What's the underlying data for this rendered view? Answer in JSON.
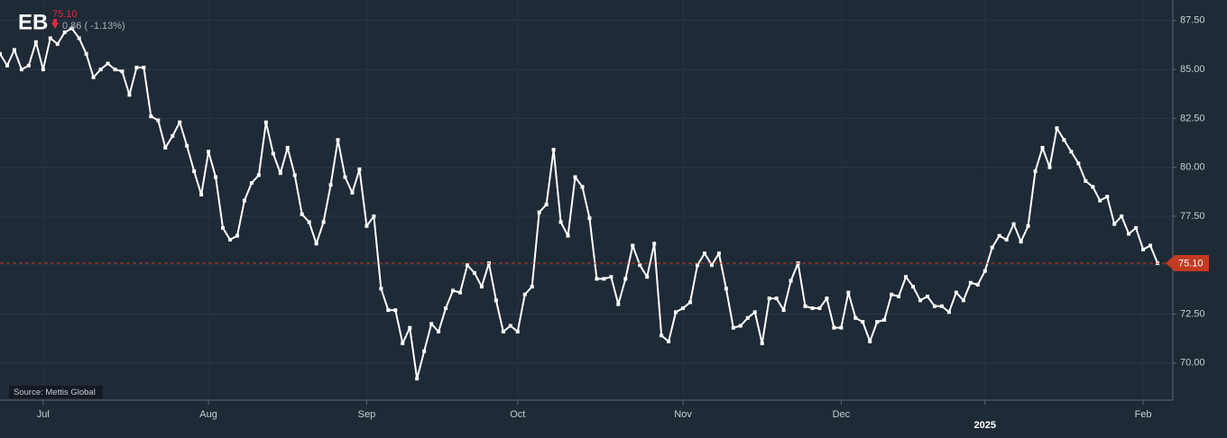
{
  "chart_data": {
    "type": "line",
    "title": "EB",
    "price_label": "75.10",
    "change_label": "0.86 ( -1.13%)",
    "source": "Source: Mettis Global",
    "categories": [
      null,
      null,
      null,
      null,
      null,
      null,
      "Jul",
      null,
      null,
      null,
      null,
      null,
      null,
      null,
      null,
      null,
      null,
      null,
      null,
      null,
      null,
      null,
      null,
      null,
      null,
      null,
      null,
      null,
      null,
      "Aug",
      null,
      null,
      null,
      null,
      null,
      null,
      null,
      null,
      null,
      null,
      null,
      null,
      null,
      null,
      null,
      null,
      null,
      null,
      null,
      null,
      null,
      "Sep",
      null,
      null,
      null,
      null,
      null,
      null,
      null,
      null,
      null,
      null,
      null,
      null,
      null,
      null,
      null,
      null,
      null,
      null,
      null,
      null,
      "Oct",
      null,
      null,
      null,
      null,
      null,
      null,
      null,
      null,
      null,
      null,
      null,
      null,
      null,
      null,
      null,
      null,
      null,
      null,
      null,
      null,
      null,
      null,
      "Nov",
      null,
      null,
      null,
      null,
      null,
      null,
      null,
      null,
      null,
      null,
      null,
      null,
      null,
      null,
      null,
      null,
      null,
      null,
      null,
      null,
      null,
      "Dec",
      null,
      null,
      null,
      null,
      null,
      null,
      null,
      null,
      null,
      null,
      null,
      null,
      null,
      null,
      null,
      null,
      null,
      null,
      null,
      "2025",
      null,
      null,
      null,
      null,
      null,
      null,
      null,
      null,
      null,
      null,
      null,
      null,
      null,
      null,
      null,
      null,
      null,
      null,
      null,
      null,
      null,
      "Feb",
      null,
      null
    ],
    "series": [
      {
        "name": "EB",
        "color": "#ffffff",
        "values": [
          85.8,
          85.2,
          86.0,
          85.0,
          85.2,
          86.4,
          85.0,
          86.6,
          86.3,
          86.9,
          87.1,
          86.6,
          85.8,
          84.6,
          85.0,
          85.3,
          85.0,
          84.9,
          83.7,
          85.1,
          85.1,
          82.6,
          82.4,
          81.0,
          81.6,
          82.3,
          81.1,
          79.8,
          78.6,
          80.8,
          79.5,
          76.9,
          76.3,
          76.5,
          78.3,
          79.2,
          79.6,
          82.3,
          80.7,
          79.7,
          81.0,
          79.6,
          77.6,
          77.2,
          76.1,
          77.2,
          79.1,
          81.4,
          79.5,
          78.7,
          79.9,
          77.0,
          77.5,
          73.8,
          72.7,
          72.7,
          71.0,
          71.8,
          69.2,
          70.6,
          72.0,
          71.6,
          72.8,
          73.7,
          73.6,
          75.0,
          74.6,
          73.9,
          75.1,
          73.2,
          71.6,
          71.9,
          71.6,
          73.5,
          73.9,
          77.7,
          78.1,
          80.9,
          77.2,
          76.5,
          79.5,
          79.0,
          77.4,
          74.3,
          74.3,
          74.4,
          73.0,
          74.3,
          76.0,
          75.0,
          74.4,
          76.1,
          71.4,
          71.1,
          72.6,
          72.8,
          73.1,
          75.0,
          75.6,
          75.0,
          75.6,
          73.8,
          71.8,
          71.9,
          72.3,
          72.6,
          71.0,
          73.3,
          73.3,
          72.7,
          74.2,
          75.1,
          72.9,
          72.8,
          72.8,
          73.3,
          71.8,
          71.8,
          73.6,
          72.3,
          72.1,
          71.1,
          72.1,
          72.2,
          73.5,
          73.4,
          74.4,
          73.9,
          73.2,
          73.4,
          72.9,
          72.9,
          72.6,
          73.6,
          73.2,
          74.1,
          74.0,
          74.7,
          75.9,
          76.5,
          76.3,
          77.1,
          76.2,
          77.0,
          79.8,
          81.0,
          80.0,
          82.0,
          81.4,
          80.8,
          80.2,
          79.3,
          79.0,
          78.3,
          78.5,
          77.1,
          77.5,
          76.6,
          76.9,
          75.8,
          76.0,
          75.1
        ]
      }
    ],
    "ylim": [
      68.1,
      88.55
    ],
    "yticks": [
      {
        "value": 70,
        "label": "70.00"
      },
      {
        "value": 72.5,
        "label": "72.50"
      },
      {
        "value": 75,
        "label": "75.00"
      },
      {
        "value": 77.5,
        "label": "77.50"
      },
      {
        "value": 80,
        "label": "80.00"
      },
      {
        "value": 82.5,
        "label": "82.50"
      },
      {
        "value": 85,
        "label": "85.00"
      },
      {
        "value": 87.5,
        "label": "87.50"
      }
    ],
    "grid": true,
    "last_price_color": "#c23b22"
  }
}
